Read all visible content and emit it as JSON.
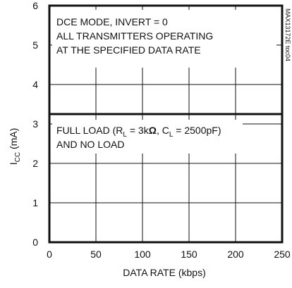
{
  "chart_data": {
    "type": "line",
    "title": "",
    "xlabel": "DATA RATE (kbps)",
    "ylabel_main": "I",
    "ylabel_sub": "CC",
    "ylabel_unit": " (mA)",
    "xlim": [
      0,
      250
    ],
    "ylim": [
      0,
      6
    ],
    "x_ticks": [
      0,
      50,
      100,
      150,
      200,
      250
    ],
    "y_ticks": [
      0,
      1,
      2,
      3,
      4,
      5,
      6
    ],
    "grid": true,
    "series": [
      {
        "x": [
          0,
          250
        ],
        "values": [
          3.25,
          3.25
        ]
      }
    ],
    "annotations": {
      "top_lines": [
        "DCE MODE, INVERT = 0",
        "ALL TRANSMITTERS OPERATING",
        "AT THE SPECIFIED DATA RATE"
      ],
      "load_prefix": "FULL LOAD (R",
      "load_rl_sub": "L",
      "load_mid": " = 3k",
      "load_omega": "Ω",
      "load_mid2": ", C",
      "load_cl_sub": "L",
      "load_suffix": " = 2500pF)",
      "load_line2": "AND NO LOAD"
    },
    "figure_id": "MAX13172E toc04"
  },
  "colors": {
    "axis": "#111111",
    "grid": "#111111",
    "line": "#111111",
    "text": "#111111",
    "background": "#ffffff"
  }
}
